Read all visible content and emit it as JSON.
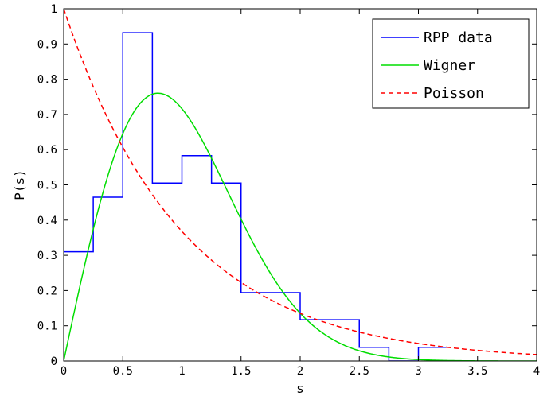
{
  "chart_data": {
    "type": "line",
    "xlabel": "s",
    "ylabel": "P(s)",
    "xlim": [
      0,
      4
    ],
    "ylim": [
      0,
      1
    ],
    "xticks": [
      "0",
      "0.5",
      "1",
      "1.5",
      "2",
      "2.5",
      "3",
      "3.5",
      "4"
    ],
    "yticks": [
      "0",
      "0.1",
      "0.2",
      "0.3",
      "0.4",
      "0.5",
      "0.6",
      "0.7",
      "0.8",
      "0.9",
      "1"
    ],
    "grid": false,
    "legend_position": "top-right",
    "series": [
      {
        "name": "RPP data",
        "style": "stairs",
        "color": "#0000ff",
        "bin_edges": [
          0,
          0.25,
          0.5,
          0.75,
          1.0,
          1.25,
          1.5,
          2.0,
          2.5,
          2.75,
          3.0,
          3.25
        ],
        "values": [
          0.31,
          0.465,
          0.932,
          0.505,
          0.583,
          0.505,
          0.194,
          0.117,
          0.039,
          0.0,
          0.039
        ]
      },
      {
        "name": "Wigner",
        "style": "solid",
        "color": "#00dd00",
        "formula": "(pi/2) s exp(-pi s^2 / 4)"
      },
      {
        "name": "Poisson",
        "style": "dashed",
        "color": "#ff0000",
        "formula": "exp(-s)"
      }
    ]
  }
}
